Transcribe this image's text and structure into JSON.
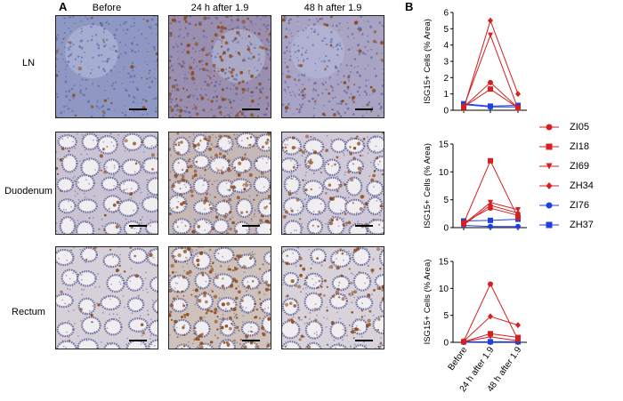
{
  "panel_a": {
    "letter": "A",
    "columns": [
      "Before",
      "24 h after 1.9",
      "48 h after 1.9"
    ],
    "rows": [
      "LN",
      "Duodenum",
      "Rectum"
    ]
  },
  "panel_b": {
    "letter": "B"
  },
  "legend": [
    {
      "name": "ZI05",
      "color": "#d42020",
      "marker": "circle"
    },
    {
      "name": "ZI18",
      "color": "#d42020",
      "marker": "square"
    },
    {
      "name": "ZI69",
      "color": "#d42020",
      "marker": "triangle-down"
    },
    {
      "name": "ZH34",
      "color": "#d42020",
      "marker": "diamond"
    },
    {
      "name": "ZI76",
      "color": "#1f3fe0",
      "marker": "circle"
    },
    {
      "name": "ZH37",
      "color": "#1f3fe0",
      "marker": "square"
    }
  ],
  "chart_data": [
    {
      "type": "line",
      "row": "LN",
      "categories": [
        "Before",
        "24 h after 1.9",
        "48 h after 1.9"
      ],
      "ylabel": "ISG15+ Cells (% Area)",
      "ylim": [
        0,
        6
      ],
      "yticks": [
        0,
        1,
        2,
        3,
        4,
        5,
        6
      ],
      "series": [
        {
          "name": "ZI05",
          "values": [
            0.2,
            1.7,
            0.15
          ]
        },
        {
          "name": "ZI18",
          "values": [
            0.2,
            1.3,
            0.15
          ]
        },
        {
          "name": "ZI69",
          "values": [
            0.2,
            4.6,
            0.1
          ]
        },
        {
          "name": "ZH34",
          "values": [
            0.1,
            5.5,
            1.0
          ]
        },
        {
          "name": "ZI76",
          "values": [
            0.35,
            0.2,
            0.2
          ]
        },
        {
          "name": "ZH37",
          "values": [
            0.4,
            0.25,
            0.3
          ]
        }
      ]
    },
    {
      "type": "line",
      "row": "Duodenum",
      "categories": [
        "Before",
        "24 h after 1.9",
        "48 h after 1.9"
      ],
      "ylabel": "ISG15+ Cells (% Area)",
      "ylim": [
        0,
        15
      ],
      "yticks": [
        0,
        5,
        10,
        15
      ],
      "series": [
        {
          "name": "ZI05",
          "values": [
            0.9,
            3.5,
            2.2
          ]
        },
        {
          "name": "ZI18",
          "values": [
            0.8,
            12.0,
            1.8
          ]
        },
        {
          "name": "ZI69",
          "values": [
            0.6,
            4.5,
            3.2
          ]
        },
        {
          "name": "ZH34",
          "values": [
            0.5,
            4.0,
            2.6
          ]
        },
        {
          "name": "ZI76",
          "values": [
            0.4,
            0.2,
            0.2
          ]
        },
        {
          "name": "ZH37",
          "values": [
            1.2,
            1.3,
            1.5
          ]
        }
      ]
    },
    {
      "type": "line",
      "row": "Rectum",
      "categories": [
        "Before",
        "24 h after 1.9",
        "48 h after 1.9"
      ],
      "ylabel": "ISG15+ Cells (% Area)",
      "ylim": [
        0,
        15
      ],
      "yticks": [
        0,
        5,
        10,
        15
      ],
      "series": [
        {
          "name": "ZI05",
          "values": [
            0.2,
            10.8,
            0.5
          ]
        },
        {
          "name": "ZI18",
          "values": [
            0.1,
            1.6,
            0.9
          ]
        },
        {
          "name": "ZI69",
          "values": [
            0.1,
            1.0,
            0.3
          ]
        },
        {
          "name": "ZH34",
          "values": [
            0.2,
            4.8,
            3.2
          ]
        },
        {
          "name": "ZI76",
          "values": [
            0.0,
            0.1,
            0.1
          ]
        },
        {
          "name": "ZH37",
          "values": [
            0.1,
            0.1,
            0.1
          ]
        }
      ]
    }
  ]
}
